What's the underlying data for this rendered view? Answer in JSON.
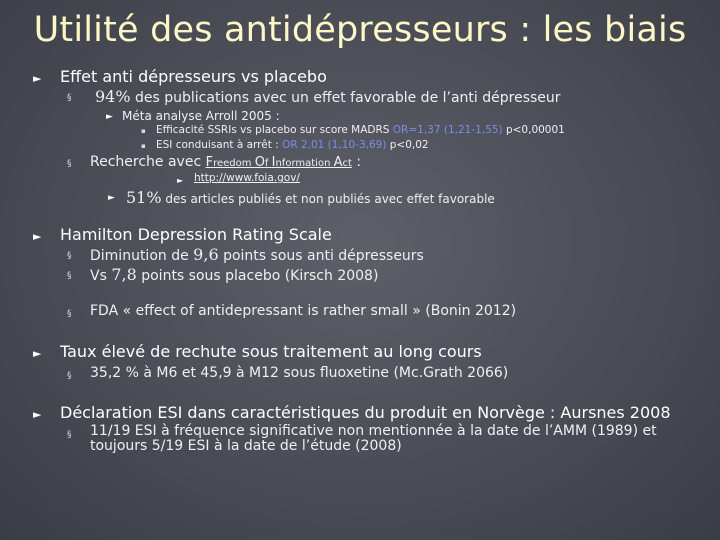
{
  "title": "Utilité des antidépresseurs : les biais",
  "s1": {
    "heading": "Effet anti dépresseurs vs placebo",
    "b1_num": "94%",
    "b1_text": " des publications avec un effet favorable de l’anti dépresseur",
    "b1_sub": "Méta analyse Arroll 2005 :",
    "b1_sub1_a": "Efficacité SSRIs vs placebo sur score MADRS ",
    "b1_sub1_or": "OR=1,37 (1,21-1,55)",
    "b1_sub1_b": " p<0,00001",
    "b1_sub2_a": "ESI conduisant à arrêt : ",
    "b1_sub2_or": "OR 2,01 (1,10-3,69)",
    "b1_sub2_b": " p<0,02",
    "b2_text": "Recherche avec ",
    "foi_F": "F",
    "foi_reedom": "reedom ",
    "foi_O": "O",
    "foi_f": "f ",
    "foi_I": "I",
    "foi_nformation": "nformation ",
    "foi_A": "A",
    "foi_ct": "ct",
    "b2_colon": " :",
    "link": "http://www.foia.gov/",
    "b2_num": "51%",
    "b2_sub": " des articles publiés et non publiés avec effet favorable"
  },
  "s2": {
    "heading": "Hamilton Depression Rating Scale",
    "b1_a": "Diminution de ",
    "b1_num": "9,6",
    "b1_b": " points sous anti dépresseurs",
    "b2_a": "Vs ",
    "b2_num": "7,8",
    "b2_b": " points sous placebo (Kirsch 2008)",
    "b3": "FDA « effect of antidepressant is rather small » (Bonin 2012)"
  },
  "s3": {
    "heading": "Taux élevé de rechute sous traitement au long cours",
    "b1": "35,2 % à M6 et 45,9 à M12 sous fluoxetine (Mc.Grath 2066)"
  },
  "s4": {
    "heading": "Déclaration ESI dans caractéristiques du produit en Norvège : Aursnes 2008",
    "b1": "11/19 ESI à fréquence significative non mentionnée à la date de l’AMM (1989) et toujours 5/19 ESI à la date de l’étude (2008)"
  },
  "bullets": {
    "triangle": "►",
    "square": "§",
    "small_square": "▪"
  },
  "colors": {
    "title": "#fdf6c6",
    "accent": "#7b8ee6",
    "background": "#4a4c56"
  }
}
